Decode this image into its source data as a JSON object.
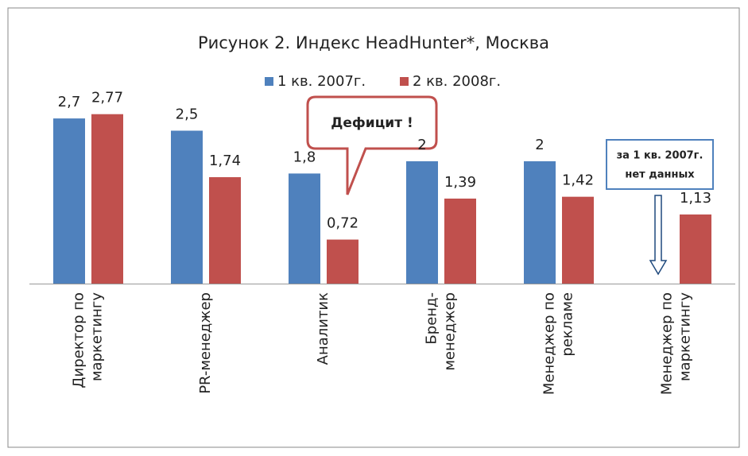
{
  "chart_data": {
    "type": "bar",
    "title": "Рисунок 2. Индекс HeadHunter*, Москва",
    "categories": [
      [
        "Директор по",
        "маркетингу"
      ],
      [
        "PR-менеджер"
      ],
      [
        "Аналитик"
      ],
      [
        "Бренд-",
        "менеджер"
      ],
      [
        "Менеджер по",
        "рекламе"
      ],
      [
        "Менеджер по",
        "маркетингу"
      ]
    ],
    "series": [
      {
        "name": "1 кв. 2007г.",
        "color": "#4f81bd",
        "values": [
          2.7,
          2.5,
          1.8,
          2,
          2,
          null
        ],
        "value_labels": [
          "2,7",
          "2,5",
          "1,8",
          "2",
          "2",
          null
        ]
      },
      {
        "name": "2 кв. 2008г.",
        "color": "#c0504d",
        "values": [
          2.77,
          1.74,
          0.72,
          1.39,
          1.42,
          1.13
        ],
        "value_labels": [
          "2,77",
          "1,74",
          "0,72",
          "1,39",
          "1,42",
          "1,13"
        ]
      }
    ],
    "ylim": [
      0,
      3
    ],
    "legend": "top",
    "annotations": {
      "deficit": "Дефицит !",
      "no_data": [
        "за 1 кв. 2007г.",
        "нет данных"
      ]
    }
  }
}
